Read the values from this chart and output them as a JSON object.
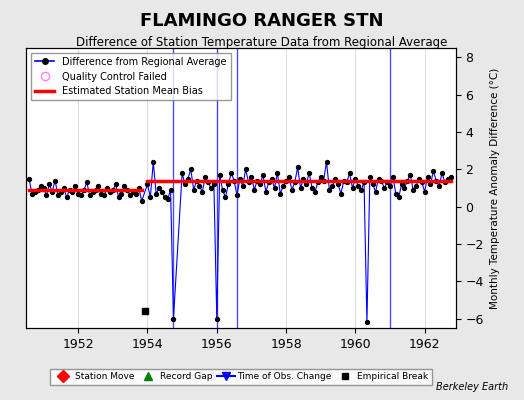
{
  "title": "FLAMINGO RANGER STN",
  "subtitle": "Difference of Station Temperature Data from Regional Average",
  "ylabel": "Monthly Temperature Anomaly Difference (°C)",
  "xlim": [
    1950.5,
    1962.9
  ],
  "ylim": [
    -6.5,
    8.5
  ],
  "yticks": [
    -6,
    -4,
    -2,
    0,
    2,
    4,
    6,
    8
  ],
  "xticks": [
    1952,
    1954,
    1956,
    1958,
    1960,
    1962
  ],
  "bg_color": "#e8e8e8",
  "plot_bg_color": "#ffffff",
  "grid_color": "#cccccc",
  "bias_line_color": "#ff0000",
  "data_line_color": "#0000ff",
  "data_dot_color": "#000000",
  "bias_before": 0.9,
  "bias_after": 1.35,
  "break_year": 1953.92,
  "empirical_break_x": 1953.92,
  "empirical_break_y": -5.6,
  "time_obs_changes": [
    1954.75,
    1956.0,
    1956.58,
    1961.0
  ],
  "watermark": "Berkeley Earth",
  "data_x": [
    1950.583,
    1950.667,
    1950.75,
    1950.833,
    1950.917,
    1951.0,
    1951.083,
    1951.167,
    1951.25,
    1951.333,
    1951.417,
    1951.5,
    1951.583,
    1951.667,
    1951.75,
    1951.833,
    1951.917,
    1952.0,
    1952.083,
    1952.167,
    1952.25,
    1952.333,
    1952.417,
    1952.5,
    1952.583,
    1952.667,
    1952.75,
    1952.833,
    1952.917,
    1953.0,
    1953.083,
    1953.167,
    1953.25,
    1953.333,
    1953.417,
    1953.5,
    1953.583,
    1953.667,
    1953.75,
    1953.833,
    1954.0,
    1954.083,
    1954.167,
    1954.25,
    1954.333,
    1954.417,
    1954.5,
    1954.583,
    1954.667,
    1954.75,
    1955.0,
    1955.083,
    1955.167,
    1955.25,
    1955.333,
    1955.417,
    1955.5,
    1955.583,
    1955.667,
    1955.75,
    1955.833,
    1955.917,
    1956.0,
    1956.083,
    1956.167,
    1956.25,
    1956.333,
    1956.417,
    1956.5,
    1956.583,
    1956.667,
    1956.75,
    1956.833,
    1956.917,
    1957.0,
    1957.083,
    1957.167,
    1957.25,
    1957.333,
    1957.417,
    1957.5,
    1957.583,
    1957.667,
    1957.75,
    1957.833,
    1957.917,
    1958.0,
    1958.083,
    1958.167,
    1958.25,
    1958.333,
    1958.417,
    1958.5,
    1958.583,
    1958.667,
    1958.75,
    1958.833,
    1958.917,
    1959.0,
    1959.083,
    1959.167,
    1959.25,
    1959.333,
    1959.417,
    1959.5,
    1959.583,
    1959.667,
    1959.75,
    1959.833,
    1959.917,
    1960.0,
    1960.083,
    1960.167,
    1960.25,
    1960.333,
    1960.417,
    1960.5,
    1960.583,
    1960.667,
    1960.75,
    1960.833,
    1960.917,
    1961.0,
    1961.083,
    1961.167,
    1961.25,
    1961.333,
    1961.417,
    1961.5,
    1961.583,
    1961.667,
    1961.75,
    1961.833,
    1961.917,
    1962.0,
    1962.083,
    1962.167,
    1962.25,
    1962.333,
    1962.417,
    1962.5,
    1962.583,
    1962.667,
    1962.75
  ],
  "data_y": [
    1.5,
    0.7,
    0.8,
    0.9,
    1.1,
    1.0,
    0.6,
    1.2,
    0.8,
    1.4,
    0.6,
    0.8,
    1.0,
    0.5,
    0.9,
    0.8,
    1.1,
    0.7,
    0.6,
    0.9,
    1.3,
    0.6,
    0.8,
    0.9,
    1.1,
    0.7,
    0.6,
    1.0,
    0.8,
    0.9,
    1.2,
    0.5,
    0.7,
    1.1,
    0.9,
    0.6,
    0.8,
    0.7,
    1.0,
    0.3,
    1.2,
    0.5,
    2.4,
    0.7,
    1.0,
    0.8,
    0.5,
    0.4,
    0.9,
    -6.0,
    1.8,
    1.2,
    1.5,
    2.0,
    0.9,
    1.4,
    1.1,
    0.8,
    1.6,
    1.3,
    1.0,
    1.2,
    -6.0,
    1.7,
    0.9,
    0.5,
    1.2,
    1.8,
    1.4,
    0.6,
    1.5,
    1.1,
    2.0,
    1.3,
    1.6,
    0.9,
    1.4,
    1.2,
    1.7,
    0.8,
    1.3,
    1.5,
    1.0,
    1.8,
    0.7,
    1.1,
    1.4,
    1.6,
    0.9,
    1.3,
    2.1,
    1.0,
    1.5,
    1.2,
    1.8,
    1.0,
    0.8,
    1.3,
    1.6,
    1.4,
    2.4,
    0.9,
    1.1,
    1.5,
    1.2,
    0.7,
    1.4,
    1.3,
    1.8,
    1.0,
    1.5,
    1.1,
    0.9,
    1.3,
    -6.2,
    1.6,
    1.2,
    0.8,
    1.5,
    1.4,
    1.0,
    1.3,
    1.1,
    1.6,
    0.7,
    0.5,
    1.2,
    1.0,
    1.4,
    1.7,
    0.9,
    1.1,
    1.5,
    1.3,
    0.8,
    1.6,
    1.2,
    1.9,
    1.4,
    1.1,
    1.8,
    1.3,
    1.5,
    1.6
  ]
}
